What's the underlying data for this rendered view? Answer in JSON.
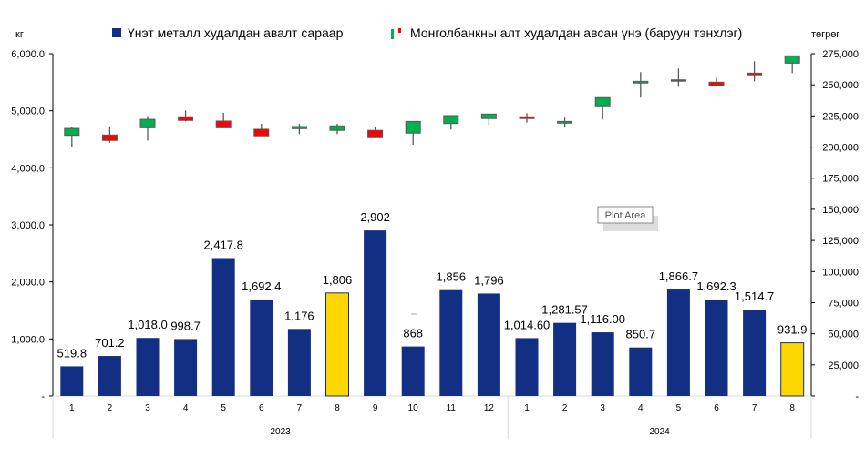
{
  "chart_data": {
    "type": "bar+candlestick",
    "left_axis": {
      "unit_label": "кг",
      "ylim": [
        0,
        6000
      ],
      "ticks": [
        0,
        1000,
        2000,
        3000,
        4000,
        5000,
        6000
      ],
      "tick_labels": [
        "-",
        "1,000.0",
        "2,000.0",
        "3,000.0",
        "4,000.0",
        "5,000.0",
        "6,000.0"
      ]
    },
    "right_axis": {
      "unit_label": "төгрөг",
      "ylim": [
        0,
        275000
      ],
      "ticks": [
        0,
        25000,
        50000,
        75000,
        100000,
        125000,
        150000,
        175000,
        200000,
        225000,
        250000,
        275000
      ],
      "tick_labels": [
        "-",
        "25,000",
        "50,000",
        "75,000",
        "100,000",
        "125,000",
        "150,000",
        "175,000",
        "200,000",
        "225,000",
        "250,000",
        "275,000"
      ]
    },
    "legend": {
      "placement": "top",
      "bar_series": "Үнэт металл худалдан авалт сараар",
      "candle_series": "Монголбанкны алт худалдан авсан үнэ (баруун тэнхлэг)"
    },
    "groups": [
      {
        "label": "2023",
        "count": 12
      },
      {
        "label": "2024",
        "count": 8
      }
    ],
    "categories": [
      "1",
      "2",
      "3",
      "4",
      "5",
      "6",
      "7",
      "8",
      "9",
      "10",
      "11",
      "12",
      "1",
      "2",
      "3",
      "4",
      "5",
      "6",
      "7",
      "8"
    ],
    "bars": {
      "values": [
        519.8,
        701.2,
        1018.0,
        998.7,
        2417.8,
        1692.4,
        1176,
        1806,
        2902,
        868,
        1856,
        1796,
        1014.6,
        1281.57,
        1116.0,
        850.7,
        1866.7,
        1692.3,
        1514.7,
        931.9
      ],
      "labels": [
        "519.8",
        "701.2",
        "1,018.0",
        "998.7",
        "2,417.8",
        "1,692.4",
        "1,176",
        "1,806",
        "2,902",
        "868",
        "1,856",
        "1,796",
        "1,014.60",
        "1,281.57",
        "1,116.00",
        "850.7",
        "1,866.7",
        "1,692.3",
        "1,514.7",
        "931.9"
      ],
      "highlight": [
        7,
        19
      ]
    },
    "candles": [
      {
        "o": 209400,
        "h": 216000,
        "l": 200400,
        "c": 215000
      },
      {
        "o": 209700,
        "h": 216000,
        "l": 203500,
        "c": 205300
      },
      {
        "o": 215500,
        "h": 225000,
        "l": 205300,
        "c": 222300
      },
      {
        "o": 224300,
        "h": 229400,
        "l": 220600,
        "c": 221400
      },
      {
        "o": 220900,
        "h": 227500,
        "l": 215500,
        "c": 215500
      },
      {
        "o": 214300,
        "h": 218700,
        "l": 209000,
        "c": 209000
      },
      {
        "o": 214800,
        "h": 218700,
        "l": 210400,
        "c": 216500
      },
      {
        "o": 213400,
        "h": 218700,
        "l": 210400,
        "c": 217000
      },
      {
        "o": 213400,
        "h": 216500,
        "l": 207500,
        "c": 207500
      },
      {
        "o": 211200,
        "h": 220600,
        "l": 201900,
        "c": 220600
      },
      {
        "o": 218900,
        "h": 225300,
        "l": 214100,
        "c": 225300
      },
      {
        "o": 222900,
        "h": 226500,
        "l": 217700,
        "c": 226500
      },
      {
        "o": 224300,
        "h": 227200,
        "l": 219700,
        "c": 222900
      },
      {
        "o": 219200,
        "h": 223600,
        "l": 216000,
        "c": 220600
      },
      {
        "o": 233100,
        "h": 239700,
        "l": 222100,
        "c": 239700
      },
      {
        "o": 251400,
        "h": 260200,
        "l": 239700,
        "c": 252800
      },
      {
        "o": 254000,
        "h": 263100,
        "l": 248400,
        "c": 254000
      },
      {
        "o": 252100,
        "h": 255800,
        "l": 249400,
        "c": 249400
      },
      {
        "o": 259400,
        "h": 268900,
        "l": 252800,
        "c": 258000
      },
      {
        "o": 267400,
        "h": 273300,
        "l": 259400,
        "c": 273300
      }
    ],
    "colors": {
      "bar": "#132F84",
      "highlight": "#FFD700",
      "up": "#00B050",
      "down": "#FF0000",
      "flat": "#595959"
    }
  },
  "tooltip": "Plot Area"
}
